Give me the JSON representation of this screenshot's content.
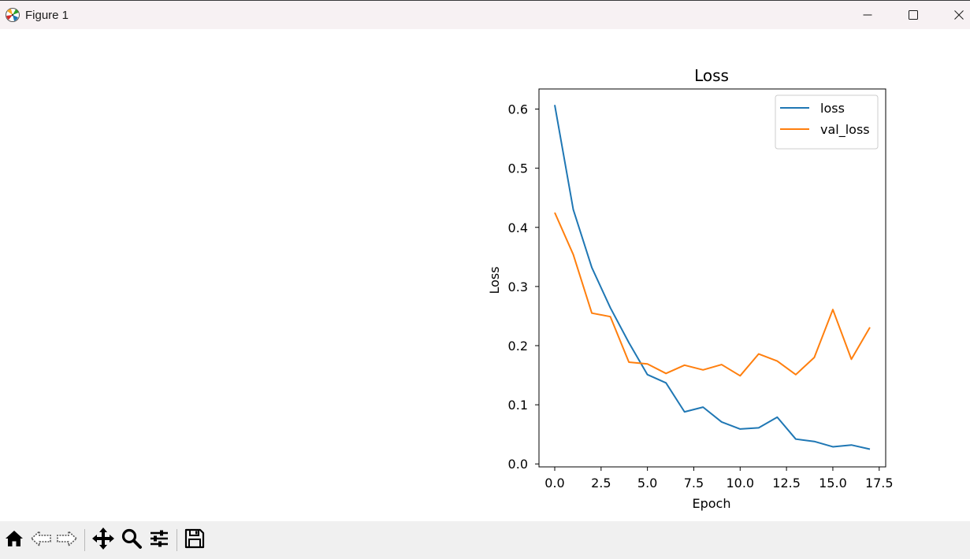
{
  "window": {
    "title": "Figure 1",
    "app_icon": "matplotlib-icon",
    "controls": [
      "minimize-icon",
      "maximize-icon",
      "close-icon"
    ]
  },
  "toolbar": {
    "tools": [
      "home-icon",
      "back-arrow-icon",
      "forward-arrow-icon",
      "pan-move-icon",
      "zoom-magnifier-icon",
      "configure-subplots-icon",
      "save-floppy-icon"
    ]
  },
  "chart_data": {
    "type": "line",
    "title": "Loss",
    "xlabel": "Epoch",
    "ylabel": "Loss",
    "xlim": [
      -0.85,
      17.85
    ],
    "ylim": [
      -0.005,
      0.634
    ],
    "xticks": [
      0.0,
      2.5,
      5.0,
      7.5,
      10.0,
      12.5,
      15.0,
      17.5
    ],
    "xtick_labels": [
      "0.0",
      "2.5",
      "5.0",
      "7.5",
      "10.0",
      "12.5",
      "15.0",
      "17.5"
    ],
    "yticks": [
      0.0,
      0.1,
      0.2,
      0.3,
      0.4,
      0.5,
      0.6
    ],
    "ytick_labels": [
      "0.0",
      "0.1",
      "0.2",
      "0.3",
      "0.4",
      "0.5",
      "0.6"
    ],
    "grid": false,
    "legend_position": "top-right",
    "x": [
      0,
      1,
      2,
      3,
      4,
      5,
      6,
      7,
      8,
      9,
      10,
      11,
      12,
      13,
      14,
      15,
      16,
      17
    ],
    "series": [
      {
        "name": "loss",
        "color": "#1f77b4",
        "values": [
          0.607,
          0.43,
          0.332,
          0.264,
          0.205,
          0.151,
          0.137,
          0.088,
          0.096,
          0.071,
          0.059,
          0.061,
          0.079,
          0.042,
          0.038,
          0.029,
          0.032,
          0.025
        ]
      },
      {
        "name": "val_loss",
        "color": "#ff7f0e",
        "values": [
          0.425,
          0.354,
          0.255,
          0.249,
          0.172,
          0.169,
          0.153,
          0.167,
          0.159,
          0.168,
          0.149,
          0.186,
          0.174,
          0.151,
          0.18,
          0.261,
          0.177,
          0.231
        ]
      }
    ]
  }
}
